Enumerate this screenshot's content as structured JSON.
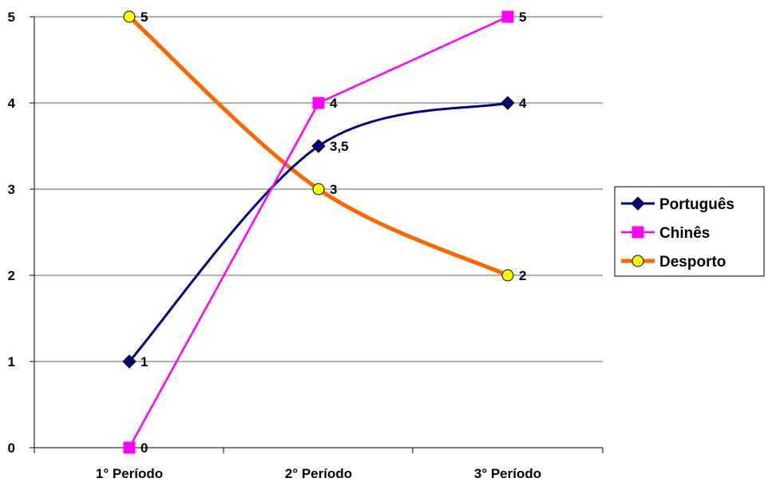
{
  "chart_data": {
    "type": "line",
    "categories": [
      "1° Período",
      "2° Período",
      "3° Período"
    ],
    "series": [
      {
        "name": "Português",
        "values": [
          1,
          3.5,
          4
        ],
        "labels": [
          "1",
          "3,5",
          "4"
        ],
        "color": "#000080",
        "marker": "diamond",
        "marker_color": "#000080"
      },
      {
        "name": "Chinês",
        "values": [
          0,
          4,
          5
        ],
        "labels": [
          "0",
          "4",
          "5"
        ],
        "color": "#ff00ff",
        "marker": "square",
        "marker_color": "#ff00ff"
      },
      {
        "name": "Desporto",
        "values": [
          5,
          3,
          2
        ],
        "labels": [
          "5",
          "3",
          "2"
        ],
        "color": "#ff6600",
        "marker": "circle",
        "marker_color": "#ffff00"
      }
    ],
    "yticks": [
      "0",
      "1",
      "2",
      "3",
      "4",
      "5"
    ],
    "ylim": [
      0,
      5
    ],
    "grid": true,
    "legend": "right",
    "title": "",
    "xlabel": "",
    "ylabel": ""
  }
}
